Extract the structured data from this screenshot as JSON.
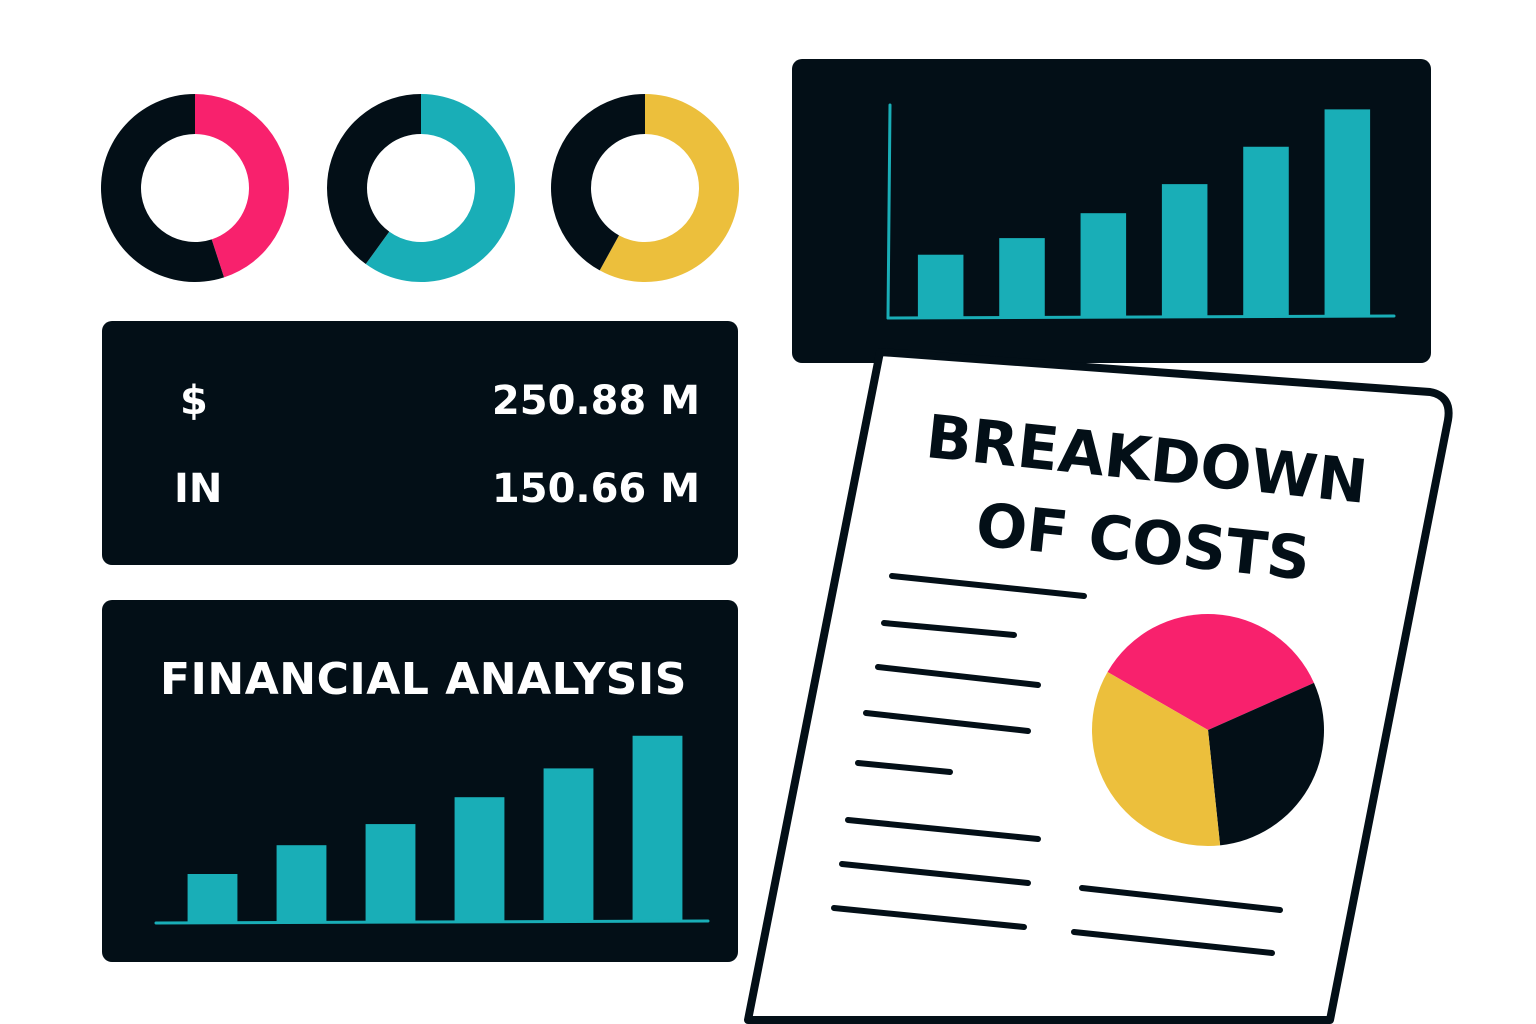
{
  "colors": {
    "dark": "#030f17",
    "pink": "#f8216d",
    "teal": "#19aeb7",
    "yellow": "#ecbf3c",
    "white": "#ffffff"
  },
  "stats": [
    {
      "label": "$",
      "value": "250.88 M"
    },
    {
      "label": "IN",
      "value": "150.66 M"
    }
  ],
  "document": {
    "title_line1": "BREAKDOWN",
    "title_line2": "OF COSTS"
  },
  "chart_data": [
    {
      "type": "pie",
      "chart": "donut-1",
      "series": [
        {
          "value": 45,
          "color": "#f8216d"
        },
        {
          "value": 55,
          "color": "#030f17"
        }
      ]
    },
    {
      "type": "pie",
      "chart": "donut-2",
      "series": [
        {
          "value": 60,
          "color": "#19aeb7"
        },
        {
          "value": 40,
          "color": "#030f17"
        }
      ]
    },
    {
      "type": "pie",
      "chart": "donut-3",
      "series": [
        {
          "value": 58,
          "color": "#ecbf3c"
        },
        {
          "value": 42,
          "color": "#030f17"
        }
      ]
    },
    {
      "type": "bar",
      "chart": "top-bar-chart",
      "values": [
        30,
        38,
        50,
        64,
        82,
        100
      ],
      "ylim": [
        0,
        105
      ],
      "color": "#19aeb7"
    },
    {
      "type": "bar",
      "chart": "financial-analysis-bar-chart",
      "title": "FINANCIAL ANALYSIS",
      "values": [
        25,
        40,
        51,
        65,
        80,
        97
      ],
      "ylim": [
        0,
        100
      ],
      "color": "#19aeb7"
    },
    {
      "type": "pie",
      "chart": "cost-breakdown-pie",
      "series": [
        {
          "value": 35,
          "color": "#f8216d"
        },
        {
          "value": 30,
          "color": "#030f17"
        },
        {
          "value": 35,
          "color": "#ecbf3c"
        }
      ]
    }
  ]
}
